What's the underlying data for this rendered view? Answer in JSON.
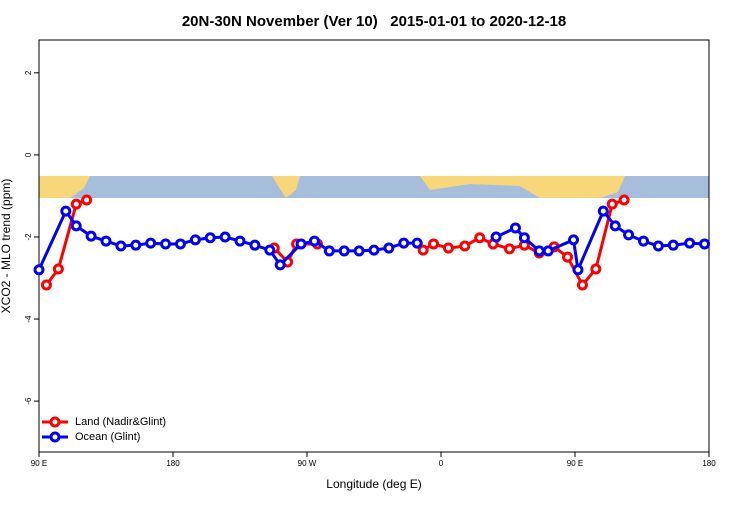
{
  "chart_data": {
    "type": "line",
    "title": "20N-30N November (Ver 10)   2015-01-01 to 2020-12-18",
    "xlabel": "Longitude (deg E)",
    "ylabel": "XCO2 - MLO trend (ppm)",
    "xlim": [
      90,
      540
    ],
    "ylim": [
      -7.24,
      2.8
    ],
    "xticks": [
      {
        "value": 90,
        "label": "90 E"
      },
      {
        "value": 180,
        "label": "180"
      },
      {
        "value": 270,
        "label": "90 W"
      },
      {
        "value": 360,
        "label": "0"
      },
      {
        "value": 450,
        "label": "90 E"
      },
      {
        "value": 540,
        "label": "180"
      }
    ],
    "yticks": [
      2,
      0,
      -2,
      -4,
      -6
    ],
    "legend": "bottom-left",
    "series": [
      {
        "name": "Land (Nadir&Glint)",
        "color": "#ff0000",
        "x": [
          95,
          103,
          115,
          122,
          null,
          248,
          257,
          263,
          277,
          null,
          348,
          355,
          365,
          376,
          386,
          395,
          406,
          416,
          426,
          436,
          445,
          455,
          464,
          475,
          483
        ],
        "values": [
          -3.17,
          -2.78,
          -1.2,
          -1.1,
          null,
          -2.27,
          -2.61,
          -2.17,
          -2.17,
          null,
          -2.32,
          -2.17,
          -2.27,
          -2.22,
          -2.02,
          -2.17,
          -2.29,
          -2.2,
          -2.39,
          -2.24,
          -2.49,
          -3.17,
          -2.78,
          -1.2,
          -1.1
        ]
      },
      {
        "name": "Ocean (Glint)",
        "color": "#0000ff",
        "x": [
          90,
          108,
          115,
          125,
          135,
          145,
          155,
          165,
          175,
          185,
          195,
          205,
          215,
          225,
          235,
          245,
          252,
          266,
          275,
          285,
          295,
          305,
          315,
          325,
          335,
          344,
          null,
          397,
          410,
          416,
          426,
          432,
          449,
          452,
          469,
          477,
          486,
          496,
          506,
          516,
          527,
          537
        ],
        "values": [
          -2.8,
          -1.37,
          -1.73,
          -1.98,
          -2.1,
          -2.22,
          -2.2,
          -2.15,
          -2.17,
          -2.17,
          -2.07,
          -2.02,
          -2.0,
          -2.1,
          -2.2,
          -2.32,
          -2.68,
          -2.17,
          -2.1,
          -2.34,
          -2.34,
          -2.34,
          -2.32,
          -2.27,
          -2.15,
          -2.15,
          null,
          -2.0,
          -1.78,
          -2.02,
          -2.34,
          -2.34,
          -2.07,
          -2.8,
          -1.37,
          -1.73,
          -1.95,
          -2.1,
          -2.22,
          -2.2,
          -2.15,
          -2.17
        ]
      }
    ]
  }
}
